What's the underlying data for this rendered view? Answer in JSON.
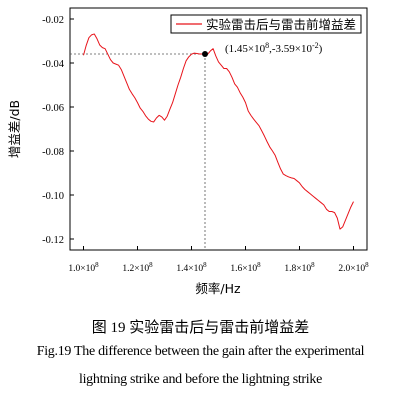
{
  "chart_data": {
    "type": "line",
    "xlabel": "频率/Hz",
    "ylabel": "增益差/dB",
    "xlim": [
      0.95,
      2.05
    ],
    "ylim": [
      -0.125,
      -0.015
    ],
    "x_ticks": [
      {
        "value": 1.0,
        "label_mantissa": "1.0×10",
        "label_exp": "8"
      },
      {
        "value": 1.2,
        "label_mantissa": "1.2×10",
        "label_exp": "8"
      },
      {
        "value": 1.4,
        "label_mantissa": "1.4×10",
        "label_exp": "8"
      },
      {
        "value": 1.6,
        "label_mantissa": "1.6×10",
        "label_exp": "8"
      },
      {
        "value": 1.8,
        "label_mantissa": "1.8×10",
        "label_exp": "8"
      },
      {
        "value": 2.0,
        "label_mantissa": "2.0×10",
        "label_exp": "8"
      }
    ],
    "y_ticks": [
      {
        "value": -0.02,
        "label": "-0.02"
      },
      {
        "value": -0.04,
        "label": "-0.04"
      },
      {
        "value": -0.06,
        "label": "-0.06"
      },
      {
        "value": -0.08,
        "label": "-0.08"
      },
      {
        "value": -0.1,
        "label": "-0.10"
      },
      {
        "value": -0.12,
        "label": "-0.12"
      }
    ],
    "x_unit_note": "×10^8 Hz",
    "legend": {
      "position": "top-right",
      "entries": [
        "实验雷击后与雷击前增益差"
      ]
    },
    "series": [
      {
        "name": "实验雷击后与雷击前增益差",
        "color": "#e8141b",
        "x": [
          1.0,
          1.01,
          1.02,
          1.03,
          1.04,
          1.05,
          1.06,
          1.07,
          1.08,
          1.09,
          1.1,
          1.11,
          1.12,
          1.13,
          1.14,
          1.15,
          1.16,
          1.17,
          1.18,
          1.19,
          1.2,
          1.21,
          1.22,
          1.23,
          1.24,
          1.25,
          1.26,
          1.27,
          1.28,
          1.29,
          1.3,
          1.31,
          1.32,
          1.33,
          1.34,
          1.35,
          1.36,
          1.37,
          1.38,
          1.39,
          1.4,
          1.41,
          1.42,
          1.43,
          1.44,
          1.45,
          1.46,
          1.47,
          1.48,
          1.49,
          1.5,
          1.51,
          1.52,
          1.53,
          1.54,
          1.55,
          1.56,
          1.57,
          1.58,
          1.59,
          1.6,
          1.61,
          1.62,
          1.63,
          1.64,
          1.65,
          1.66,
          1.67,
          1.68,
          1.69,
          1.7,
          1.71,
          1.72,
          1.73,
          1.74,
          1.75,
          1.76,
          1.77,
          1.78,
          1.79,
          1.8,
          1.81,
          1.82,
          1.83,
          1.84,
          1.85,
          1.86,
          1.87,
          1.88,
          1.89,
          1.9,
          1.91,
          1.92,
          1.93,
          1.94,
          1.95,
          1.96,
          1.97,
          1.98,
          1.99,
          2.0
        ],
        "y": [
          -0.0365,
          -0.032,
          -0.0285,
          -0.0272,
          -0.0268,
          -0.029,
          -0.0318,
          -0.033,
          -0.0335,
          -0.036,
          -0.0385,
          -0.04,
          -0.0405,
          -0.041,
          -0.043,
          -0.046,
          -0.049,
          -0.052,
          -0.054,
          -0.0558,
          -0.058,
          -0.0605,
          -0.062,
          -0.064,
          -0.0655,
          -0.0665,
          -0.0668,
          -0.065,
          -0.0638,
          -0.0645,
          -0.066,
          -0.0642,
          -0.061,
          -0.058,
          -0.054,
          -0.05,
          -0.0465,
          -0.0425,
          -0.039,
          -0.0372,
          -0.036,
          -0.0355,
          -0.0357,
          -0.0359,
          -0.0359,
          -0.0359,
          -0.036,
          -0.0345,
          -0.0335,
          -0.0368,
          -0.0395,
          -0.041,
          -0.0425,
          -0.0425,
          -0.044,
          -0.0465,
          -0.0495,
          -0.051,
          -0.0535,
          -0.0555,
          -0.058,
          -0.0618,
          -0.0638,
          -0.0655,
          -0.067,
          -0.0685,
          -0.0708,
          -0.0732,
          -0.0758,
          -0.0782,
          -0.08,
          -0.082,
          -0.0852,
          -0.0882,
          -0.0905,
          -0.0912,
          -0.0918,
          -0.0922,
          -0.0925,
          -0.0935,
          -0.0945,
          -0.0962,
          -0.0975,
          -0.0985,
          -0.0995,
          -0.1005,
          -0.1015,
          -0.1025,
          -0.1035,
          -0.1045,
          -0.1065,
          -0.1075,
          -0.1075,
          -0.108,
          -0.1105,
          -0.1155,
          -0.1145,
          -0.1115,
          -0.1085,
          -0.1055,
          -0.103
        ]
      }
    ],
    "annotation": {
      "x": 1.45,
      "y": -0.0359,
      "text_x": "(1.45×10",
      "text_x_exp": "8",
      "text_mid": ",-3.59×10",
      "text_y_exp": "-2",
      "text_end": ")"
    }
  },
  "captions": {
    "chinese": "图  19 实验雷击后与雷击前增益差",
    "english_line1": "Fig.19 The difference between the gain after the experimental",
    "english_line2": "lightning strike and before the lightning strike"
  }
}
